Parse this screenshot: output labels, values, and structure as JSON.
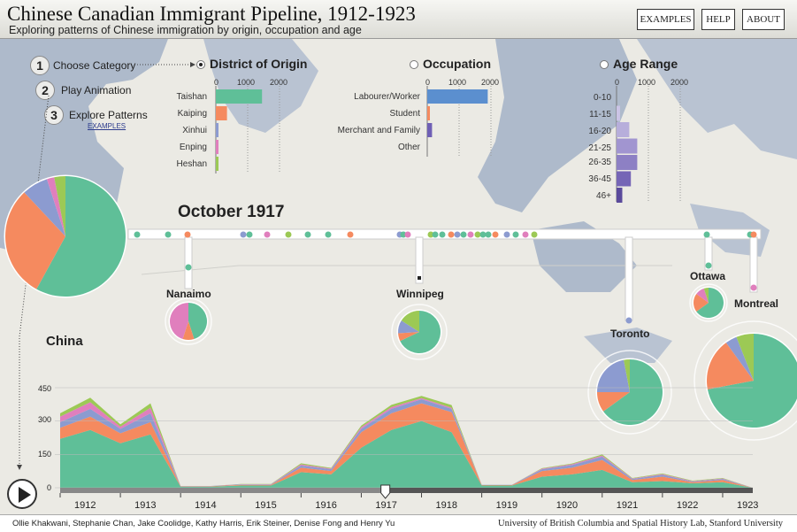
{
  "app": {
    "title": "Chinese Canadian Immigrant Pipeline, 1912-1923",
    "subtitle": "Exploring patterns of Chinese immigration by origin, occupation and age",
    "buttons": [
      "EXAMPLES",
      "HELP",
      "ABOUT"
    ]
  },
  "steps": [
    {
      "num": "1",
      "label": "Choose Category"
    },
    {
      "num": "2",
      "label": "Play Animation"
    },
    {
      "num": "3",
      "label": "Explore Patterns"
    }
  ],
  "examples_link": "EXAMPLES",
  "colors": {
    "teal": "#5fbf98",
    "orange": "#f58a5f",
    "periwinkle": "#8c9bd0",
    "pink": "#e07fbd",
    "lime": "#9cc955",
    "blue": "#5b8fcf",
    "purple": "#6f5fb5",
    "water": "#aebacb",
    "land": "#ebeae4"
  },
  "categories": [
    {
      "name": "District of Origin",
      "selected": true,
      "ticks": [
        "0",
        "1000",
        "2000"
      ],
      "items": [
        {
          "label": "Taishan",
          "value": 1450,
          "color": "#5fbf98"
        },
        {
          "label": "Kaiping",
          "value": 350,
          "color": "#f58a5f"
        },
        {
          "label": "Xinhui",
          "value": 70,
          "color": "#8c9bd0"
        },
        {
          "label": "Enping",
          "value": 45,
          "color": "#e07fbd"
        },
        {
          "label": "Heshan",
          "value": 40,
          "color": "#9cc955"
        }
      ]
    },
    {
      "name": "Occupation",
      "selected": false,
      "ticks": [
        "0",
        "1000",
        "2000"
      ],
      "items": [
        {
          "label": "Labourer/Worker",
          "value": 1900,
          "color": "#5b8fcf"
        },
        {
          "label": "Student",
          "value": 60,
          "color": "#f58a5f"
        },
        {
          "label": "Merchant and Family",
          "value": 150,
          "color": "#6f5fb5"
        },
        {
          "label": "Other",
          "value": 0,
          "color": "#999999"
        }
      ]
    },
    {
      "name": "Age Range",
      "selected": false,
      "ticks": [
        "0",
        "1000",
        "2000"
      ],
      "items": [
        {
          "label": "0-10",
          "value": 0,
          "color": "#d9d4ec"
        },
        {
          "label": "11-15",
          "value": 110,
          "color": "#cbc4e6"
        },
        {
          "label": "16-20",
          "value": 400,
          "color": "#b7aedb"
        },
        {
          "label": "21-25",
          "value": 650,
          "color": "#a195d0"
        },
        {
          "label": "26-35",
          "value": 650,
          "color": "#8d80c4"
        },
        {
          "label": "36-45",
          "value": 450,
          "color": "#7565b6"
        },
        {
          "label": "46+",
          "value": 180,
          "color": "#5a4a9c"
        }
      ]
    }
  ],
  "current_date": "October 1917",
  "origin_label": "China",
  "origin_pie": [
    58,
    30,
    7,
    2,
    3
  ],
  "cities": [
    {
      "name": "Nanaimo",
      "pie": [
        45,
        10,
        0,
        45,
        0
      ]
    },
    {
      "name": "Winnipeg",
      "pie": [
        68,
        6,
        10,
        0,
        16
      ]
    },
    {
      "name": "Toronto",
      "pie": [
        65,
        10,
        22,
        0,
        3
      ]
    },
    {
      "name": "Ottawa",
      "pie": [
        65,
        20,
        0,
        10,
        5
      ]
    },
    {
      "name": "Montreal",
      "pie": [
        72,
        18,
        4,
        0,
        6
      ]
    }
  ],
  "chart_data": {
    "type": "area",
    "stacked": true,
    "x": [
      "1912",
      "1912.5",
      "1913",
      "1913.5",
      "1914",
      "1914.5",
      "1915",
      "1915.5",
      "1916",
      "1916.5",
      "1917",
      "1917.5",
      "1918",
      "1918.5",
      "1919",
      "1919.5",
      "1920",
      "1920.5",
      "1921",
      "1921.5",
      "1922",
      "1922.5",
      "1923",
      "1923.5"
    ],
    "year_labels": [
      "1912",
      "1913",
      "1914",
      "1915",
      "1916",
      "1917",
      "1918",
      "1919",
      "1920",
      "1921",
      "1922",
      "1923"
    ],
    "y_ticks": [
      "0",
      "150",
      "300",
      "450"
    ],
    "ylim": [
      0,
      450
    ],
    "series": [
      {
        "color": "#5fbf98",
        "values": [
          220,
          260,
          200,
          240,
          5,
          5,
          10,
          10,
          70,
          60,
          180,
          260,
          300,
          250,
          10,
          10,
          50,
          60,
          80,
          25,
          30,
          20,
          25,
          0
        ]
      },
      {
        "color": "#f58a5f",
        "values": [
          50,
          60,
          45,
          55,
          2,
          2,
          3,
          3,
          20,
          15,
          70,
          75,
          80,
          90,
          2,
          2,
          25,
          30,
          45,
          10,
          20,
          5,
          10,
          0
        ]
      },
      {
        "color": "#8c9bd0",
        "values": [
          25,
          35,
          20,
          40,
          1,
          1,
          2,
          2,
          10,
          8,
          15,
          20,
          18,
          15,
          1,
          1,
          8,
          12,
          15,
          5,
          8,
          3,
          5,
          0
        ]
      },
      {
        "color": "#e07fbd",
        "values": [
          25,
          30,
          10,
          25,
          0,
          0,
          1,
          1,
          5,
          3,
          8,
          8,
          5,
          5,
          0,
          0,
          3,
          4,
          5,
          2,
          3,
          2,
          2,
          0
        ]
      },
      {
        "color": "#9cc955",
        "values": [
          15,
          20,
          10,
          20,
          0,
          0,
          1,
          1,
          5,
          3,
          7,
          10,
          10,
          12,
          0,
          0,
          2,
          3,
          5,
          2,
          3,
          2,
          2,
          0
        ]
      }
    ],
    "slider_position": "1917.4"
  },
  "footer": {
    "credits": "Ollie Khakwani, Stephanie Chan, Jake Coolidge, Kathy Harris, Erik Steiner, Denise Fong and Henry Yu",
    "institution": "University of British Columbia and Spatial History Lab, Stanford University"
  }
}
